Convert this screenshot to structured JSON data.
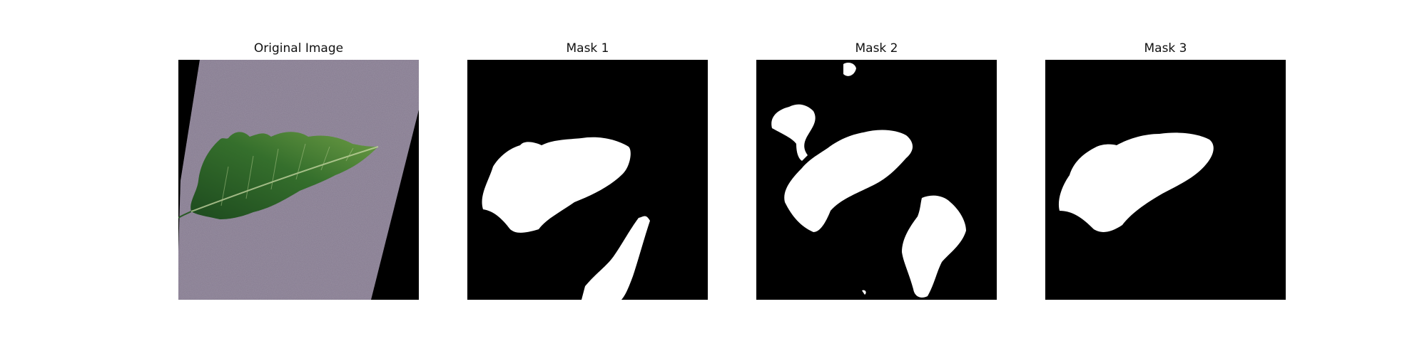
{
  "figure": {
    "panels": [
      {
        "title": "Original Image",
        "content": "tomato leaf on purple textured background"
      },
      {
        "title": "Mask 1",
        "content": "binary mask"
      },
      {
        "title": "Mask 2",
        "content": "binary mask"
      },
      {
        "title": "Mask 3",
        "content": "binary mask"
      }
    ]
  },
  "colors": {
    "background": "#000000",
    "mask_foreground": "#ffffff",
    "paper": "#8d8296",
    "leaf_dark": "#1f4f20",
    "leaf_mid": "#3d7a33",
    "leaf_light": "#74a448"
  }
}
